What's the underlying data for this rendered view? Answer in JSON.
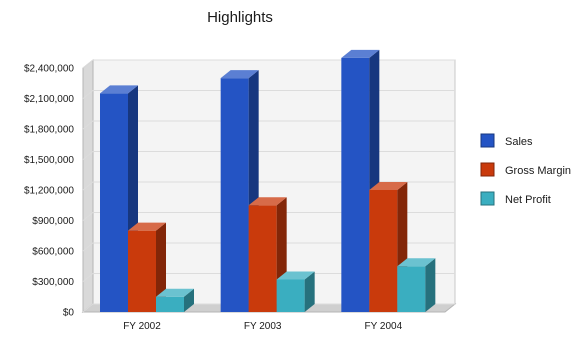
{
  "chart_data": {
    "type": "bar",
    "title": "Highlights",
    "xlabel": "",
    "ylabel": "",
    "categories": [
      "FY 2002",
      "FY 2003",
      "FY 2004"
    ],
    "series": [
      {
        "name": "Sales",
        "values": [
          2150000,
          2300000,
          2500000
        ]
      },
      {
        "name": "Gross Margin",
        "values": [
          800000,
          1050000,
          1200000
        ]
      },
      {
        "name": "Net Profit",
        "values": [
          150000,
          320000,
          450000
        ]
      }
    ],
    "ylim": [
      0,
      2400000
    ],
    "yticks": [
      "$0",
      "$300,000",
      "$600,000",
      "$900,000",
      "$1,200,000",
      "$1,500,000",
      "$1,800,000",
      "$2,100,000",
      "$2,400,000"
    ],
    "grid": true,
    "legend": "right",
    "colors": {
      "Sales": "#2454c4",
      "Gross Margin": "#c93a0c",
      "Net Profit": "#3aaec0"
    }
  }
}
